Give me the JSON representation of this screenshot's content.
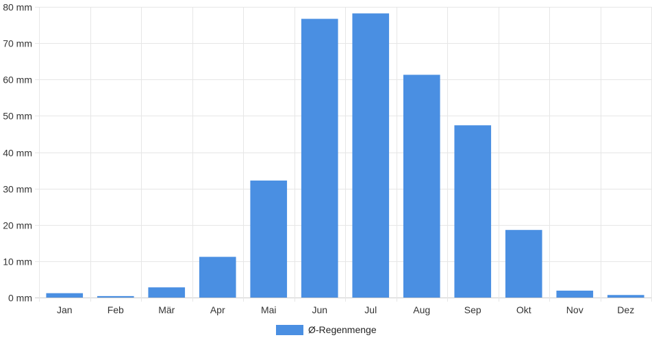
{
  "chart_data": {
    "type": "bar",
    "title": "",
    "xlabel": "",
    "ylabel": "",
    "categories": [
      "Jan",
      "Feb",
      "Mär",
      "Apr",
      "Mai",
      "Jun",
      "Jul",
      "Aug",
      "Sep",
      "Okt",
      "Nov",
      "Dez"
    ],
    "series": [
      {
        "name": "Ø-Regenmenge",
        "color": "#4a8fe2",
        "values": [
          1.2,
          0.4,
          2.8,
          11.2,
          32.2,
          76.7,
          78.2,
          61.3,
          47.4,
          18.6,
          1.9,
          0.7
        ]
      }
    ],
    "ylim": [
      0,
      80
    ],
    "yticks": [
      0,
      10,
      20,
      30,
      40,
      50,
      60,
      70,
      80
    ],
    "ytick_suffix": " mm",
    "grid": true,
    "legend_position": "bottom-center"
  }
}
